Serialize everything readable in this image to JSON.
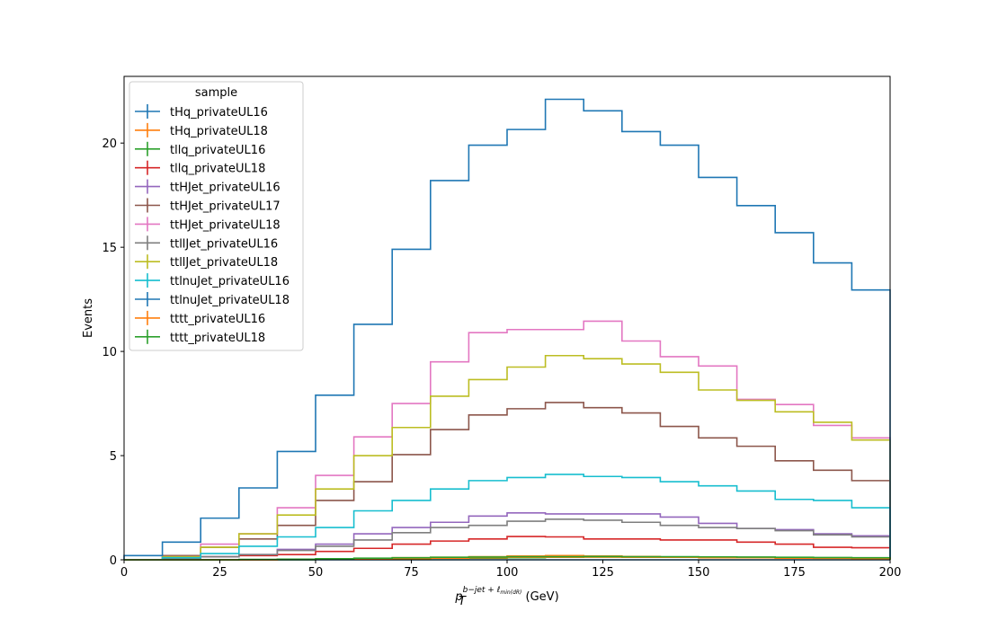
{
  "chart_data": {
    "type": "line",
    "drawstyle": "step-histogram",
    "xlabel": {
      "main": "p",
      "sub": "T",
      "sup": "b−jet + ℓ",
      "supsub": "min(dR)",
      "unit": " (GeV)"
    },
    "ylabel": "Events",
    "xlim": [
      0,
      200
    ],
    "ylim": [
      0,
      23.2
    ],
    "xticks": [
      0,
      25,
      50,
      75,
      100,
      125,
      150,
      175,
      200
    ],
    "yticks": [
      0,
      5,
      10,
      15,
      20
    ],
    "bin_edges": [
      0,
      10,
      20,
      30,
      40,
      50,
      60,
      70,
      80,
      90,
      100,
      110,
      120,
      130,
      140,
      150,
      160,
      170,
      180,
      190,
      200
    ],
    "legend": {
      "title": "sample",
      "placement": "upper-left"
    },
    "series": [
      {
        "name": "tHq_privateUL16",
        "color": "#1f77b4",
        "values": [
          0,
          0,
          0,
          0,
          0,
          0,
          0,
          0,
          0,
          0,
          0,
          0,
          0,
          0,
          0,
          0,
          0,
          0,
          0,
          0
        ]
      },
      {
        "name": "tHq_privateUL18",
        "color": "#ff7f0e",
        "values": [
          0,
          0,
          0,
          0,
          0.02,
          0.03,
          0.05,
          0.1,
          0.12,
          0.15,
          0.18,
          0.2,
          0.18,
          0.16,
          0.14,
          0.12,
          0.1,
          0.08,
          0.07,
          0.06
        ]
      },
      {
        "name": "tllq_privateUL16",
        "color": "#2ca02c",
        "values": [
          0,
          0,
          0,
          0,
          0,
          0.02,
          0.03,
          0.05,
          0.07,
          0.08,
          0.1,
          0.12,
          0.13,
          0.12,
          0.12,
          0.13,
          0.12,
          0.1,
          0.09,
          0.08
        ]
      },
      {
        "name": "tllq_privateUL18",
        "color": "#d62728",
        "values": [
          0,
          0.1,
          0.15,
          0.2,
          0.25,
          0.4,
          0.55,
          0.75,
          0.9,
          1.0,
          1.12,
          1.1,
          1.0,
          1.0,
          0.95,
          0.95,
          0.85,
          0.75,
          0.6,
          0.58
        ]
      },
      {
        "name": "ttHJet_privateUL16",
        "color": "#9467bd",
        "values": [
          0,
          0.05,
          0.15,
          0.25,
          0.5,
          0.75,
          1.25,
          1.55,
          1.8,
          2.1,
          2.25,
          2.2,
          2.2,
          2.2,
          2.05,
          1.75,
          1.5,
          1.45,
          1.25,
          1.15
        ]
      },
      {
        "name": "ttHJet_privateUL17",
        "color": "#8c564b",
        "values": [
          0,
          0.2,
          0.6,
          1.0,
          1.65,
          2.85,
          3.75,
          5.05,
          6.25,
          6.95,
          7.25,
          7.55,
          7.3,
          7.05,
          6.4,
          5.85,
          5.45,
          4.75,
          4.3,
          3.8
        ]
      },
      {
        "name": "ttHJet_privateUL18",
        "color": "#e377c2",
        "values": [
          0,
          0.15,
          0.75,
          1.25,
          2.5,
          4.05,
          5.9,
          7.5,
          9.5,
          10.9,
          11.05,
          11.05,
          11.45,
          10.5,
          9.75,
          9.3,
          7.7,
          7.45,
          6.45,
          5.85
        ]
      },
      {
        "name": "ttllJet_privateUL16",
        "color": "#7f7f7f",
        "values": [
          0,
          0.05,
          0.15,
          0.25,
          0.45,
          0.65,
          0.95,
          1.3,
          1.55,
          1.65,
          1.85,
          1.95,
          1.9,
          1.8,
          1.65,
          1.55,
          1.5,
          1.4,
          1.2,
          1.1
        ]
      },
      {
        "name": "ttllJet_privateUL18",
        "color": "#bcbd22",
        "values": [
          0,
          0.15,
          0.6,
          1.25,
          2.15,
          3.4,
          5.0,
          6.35,
          7.85,
          8.65,
          9.25,
          9.8,
          9.65,
          9.4,
          9.0,
          8.15,
          7.65,
          7.1,
          6.6,
          5.75
        ]
      },
      {
        "name": "ttlnuJet_privateUL16",
        "color": "#17becf",
        "values": [
          0,
          0.1,
          0.3,
          0.65,
          1.1,
          1.55,
          2.35,
          2.85,
          3.4,
          3.8,
          3.95,
          4.1,
          4.0,
          3.95,
          3.75,
          3.55,
          3.3,
          2.9,
          2.85,
          2.5
        ]
      },
      {
        "name": "ttlnuJet_privateUL18",
        "color": "#1f77b4",
        "values": [
          0.2,
          0.85,
          2.0,
          3.45,
          5.2,
          7.9,
          11.3,
          14.9,
          18.2,
          19.9,
          20.65,
          22.1,
          21.55,
          20.55,
          19.9,
          18.35,
          17.0,
          15.7,
          14.25,
          12.95
        ]
      },
      {
        "name": "tttt_privateUL16",
        "color": "#ff7f0e",
        "values": [
          0,
          0,
          0,
          0,
          0.02,
          0.03,
          0.05,
          0.06,
          0.08,
          0.1,
          0.12,
          0.12,
          0.13,
          0.12,
          0.12,
          0.1,
          0.1,
          0.09,
          0.08,
          0.08
        ]
      },
      {
        "name": "tttt_privateUL18",
        "color": "#2ca02c",
        "values": [
          0,
          0,
          0,
          0.02,
          0.03,
          0.05,
          0.08,
          0.1,
          0.12,
          0.13,
          0.15,
          0.15,
          0.16,
          0.15,
          0.15,
          0.14,
          0.13,
          0.12,
          0.11,
          0.1
        ]
      }
    ]
  }
}
